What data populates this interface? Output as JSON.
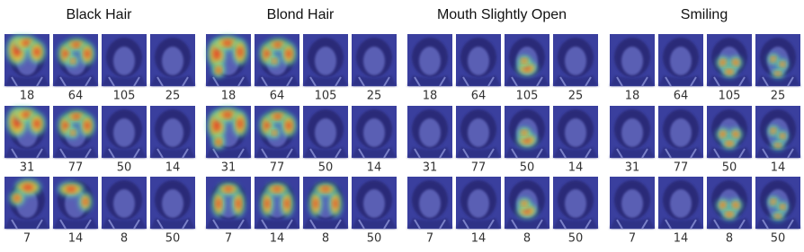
{
  "panels": [
    {
      "title": "Black Hair",
      "rows": [
        [
          18,
          64,
          105,
          25
        ],
        [
          31,
          77,
          50,
          14
        ],
        [
          7,
          14,
          8,
          50
        ]
      ]
    },
    {
      "title": "Blond Hair",
      "rows": [
        [
          18,
          64,
          105,
          25
        ],
        [
          31,
          77,
          50,
          14
        ],
        [
          7,
          14,
          8,
          50
        ]
      ]
    },
    {
      "title": "Mouth Slightly Open",
      "rows": [
        [
          18,
          64,
          105,
          25
        ],
        [
          31,
          77,
          50,
          14
        ],
        [
          7,
          14,
          8,
          50
        ]
      ]
    },
    {
      "title": "Smiling",
      "rows": [
        [
          18,
          64,
          105,
          25
        ],
        [
          31,
          77,
          50,
          14
        ],
        [
          7,
          14,
          8,
          50
        ]
      ]
    }
  ]
}
